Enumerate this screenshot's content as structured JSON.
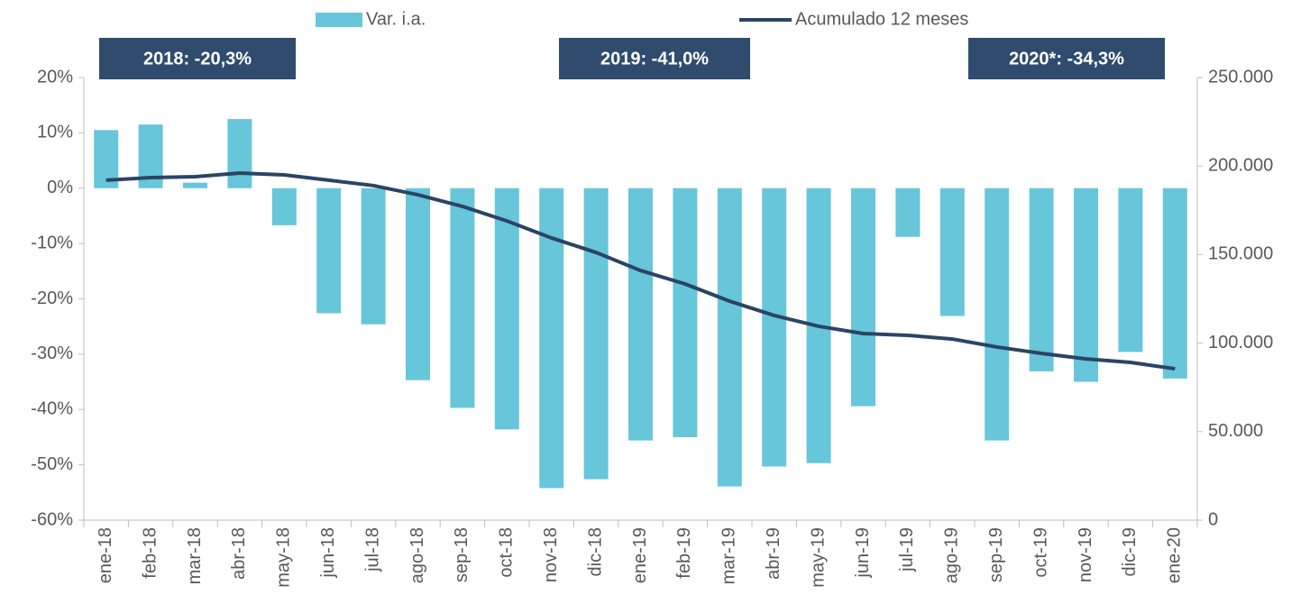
{
  "chart_data": {
    "type": "bar_line",
    "categories": [
      "ene-18",
      "feb-18",
      "mar-18",
      "abr-18",
      "may-18",
      "jun-18",
      "jul-18",
      "ago-18",
      "sep-18",
      "oct-18",
      "nov-18",
      "dic-18",
      "ene-19",
      "feb-19",
      "mar-19",
      "abr-19",
      "may-19",
      "jun-19",
      "jul-19",
      "ago-19",
      "sep-19",
      "oct-19",
      "nov-19",
      "dic-19",
      "ene-20"
    ],
    "series": [
      {
        "name": "Var. i.a.",
        "type": "bar",
        "color": "#67c6d9",
        "values": [
          10.5,
          11.5,
          1.0,
          12.5,
          -6.7,
          -22.6,
          -24.6,
          -34.7,
          -39.7,
          -43.6,
          -54.2,
          -52.6,
          -45.6,
          -45.0,
          -53.9,
          -50.3,
          -49.7,
          -39.4,
          -8.8,
          -23.1,
          -45.6,
          -33.1,
          -35.0,
          -29.6,
          -34.4
        ]
      },
      {
        "name": "Acumulado 12 meses",
        "type": "line",
        "axis": "y2",
        "color": "#2b4466",
        "values": [
          192000,
          193500,
          194000,
          196000,
          195000,
          192000,
          189000,
          183800,
          177200,
          169000,
          159400,
          151200,
          141000,
          133400,
          123700,
          115600,
          109500,
          105400,
          104400,
          102300,
          97800,
          94200,
          91100,
          89100,
          85500
        ]
      }
    ],
    "ylim": [
      -60,
      20
    ],
    "yticks": [
      {
        "value": -60,
        "label": "-60%"
      },
      {
        "value": -50,
        "label": "-50%"
      },
      {
        "value": -40,
        "label": "-40%"
      },
      {
        "value": -30,
        "label": "-30%"
      },
      {
        "value": -20,
        "label": "-20%"
      },
      {
        "value": -10,
        "label": "-10%"
      },
      {
        "value": 0,
        "label": "0%"
      },
      {
        "value": 10,
        "label": "10%"
      },
      {
        "value": 20,
        "label": "20%"
      }
    ],
    "y2lim": [
      0,
      250000
    ],
    "y2ticks": [
      0,
      {
        "value": 50000,
        "label": "50.000"
      },
      {
        "value": 100000,
        "label": "100.000"
      },
      {
        "value": 150000,
        "label": "150.000"
      },
      {
        "value": 200000,
        "label": "200.000"
      },
      {
        "value": 250000,
        "label": "250.000"
      }
    ],
    "annotations": [
      "2018:  -20,3%",
      "2019:  -41,0%",
      "2020*:  -34,3%"
    ],
    "annotation_color": "#2f4c6e"
  }
}
